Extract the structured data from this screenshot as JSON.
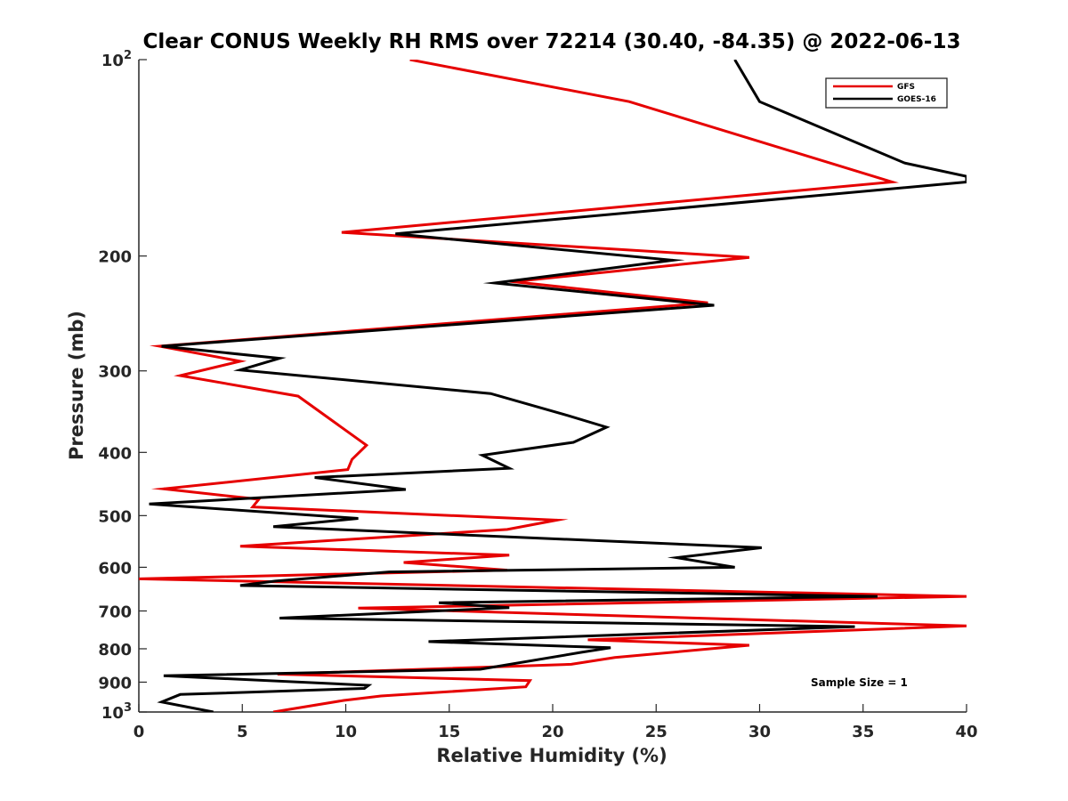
{
  "chart_data": {
    "type": "line",
    "title": "Clear CONUS Weekly RH RMS over 72214 (30.40, -84.35) @ 2022-06-13",
    "xlabel": "Relative Humidity (%)",
    "ylabel": "Pressure (mb)",
    "xlim": [
      0,
      40
    ],
    "ylim": [
      100,
      1000
    ],
    "yscale": "log",
    "y_reversed": true,
    "x_ticks": [
      0,
      5,
      10,
      15,
      20,
      25,
      30,
      35,
      40
    ],
    "x_tick_labels": [
      "0",
      "5",
      "10",
      "15",
      "20",
      "25",
      "30",
      "35",
      "40"
    ],
    "y_ticks": [
      100,
      200,
      300,
      400,
      500,
      600,
      700,
      800,
      900,
      1000
    ],
    "y_tick_labels": [
      {
        "text": "10",
        "sup": "2"
      },
      {
        "text": "200",
        "sup": ""
      },
      {
        "text": "300",
        "sup": ""
      },
      {
        "text": "400",
        "sup": ""
      },
      {
        "text": "500",
        "sup": ""
      },
      {
        "text": "600",
        "sup": ""
      },
      {
        "text": "700",
        "sup": ""
      },
      {
        "text": "800",
        "sup": ""
      },
      {
        "text": "900",
        "sup": ""
      },
      {
        "text": "10",
        "sup": "3"
      }
    ],
    "legend_position": "top-right",
    "annotation": "Sample Size = 1",
    "series": [
      {
        "name": "GFS",
        "color": "#e60000",
        "points": [
          [
            13.1,
            100
          ],
          [
            23.7,
            116
          ],
          [
            36.4,
            154
          ],
          [
            9.8,
            184
          ],
          [
            29.5,
            201
          ],
          [
            18.1,
            219
          ],
          [
            27.5,
            236
          ],
          [
            1.0,
            275
          ],
          [
            4.9,
            290
          ],
          [
            2.0,
            305
          ],
          [
            7.7,
            328
          ],
          [
            11.0,
            390
          ],
          [
            10.3,
            410
          ],
          [
            10.1,
            425
          ],
          [
            1.2,
            455
          ],
          [
            5.8,
            472
          ],
          [
            5.5,
            485
          ],
          [
            20.2,
            508
          ],
          [
            17.8,
            525
          ],
          [
            4.9,
            557
          ],
          [
            17.9,
            575
          ],
          [
            12.8,
            590
          ],
          [
            17.8,
            606
          ],
          [
            0.0,
            625
          ],
          [
            40.0,
            665
          ],
          [
            10.6,
            693
          ],
          [
            40.0,
            738
          ],
          [
            21.7,
            775
          ],
          [
            29.5,
            790
          ],
          [
            23.0,
            825
          ],
          [
            20.9,
            845
          ],
          [
            6.7,
            875
          ],
          [
            18.9,
            895
          ],
          [
            18.7,
            915
          ],
          [
            11.7,
            945
          ],
          [
            9.9,
            960
          ],
          [
            6.5,
            1000
          ]
        ]
      },
      {
        "name": "GOES-16",
        "color": "#000000",
        "points": [
          [
            28.8,
            100
          ],
          [
            30.0,
            116
          ],
          [
            37.0,
            144
          ],
          [
            40.0,
            151
          ],
          [
            40.0,
            154
          ],
          [
            12.4,
            185
          ],
          [
            25.8,
            203
          ],
          [
            17.2,
            220
          ],
          [
            27.8,
            238
          ],
          [
            1.1,
            275
          ],
          [
            6.8,
            287
          ],
          [
            4.9,
            299
          ],
          [
            17.0,
            325
          ],
          [
            20.7,
            351
          ],
          [
            22.6,
            366
          ],
          [
            21.0,
            386
          ],
          [
            16.6,
            404
          ],
          [
            17.9,
            423
          ],
          [
            8.5,
            437
          ],
          [
            12.9,
            456
          ],
          [
            0.5,
            480
          ],
          [
            10.6,
            505
          ],
          [
            6.5,
            520
          ],
          [
            30.1,
            560
          ],
          [
            26.0,
            580
          ],
          [
            28.8,
            600
          ],
          [
            12.1,
            610
          ],
          [
            6.6,
            630
          ],
          [
            4.9,
            640
          ],
          [
            35.7,
            665
          ],
          [
            14.5,
            680
          ],
          [
            17.9,
            692
          ],
          [
            6.8,
            718
          ],
          [
            34.6,
            740
          ],
          [
            14.0,
            780
          ],
          [
            22.8,
            797
          ],
          [
            21.4,
            810
          ],
          [
            16.5,
            860
          ],
          [
            1.2,
            880
          ],
          [
            11.1,
            910
          ],
          [
            10.9,
            920
          ],
          [
            2.0,
            940
          ],
          [
            1.1,
            965
          ],
          [
            3.6,
            1000
          ]
        ]
      }
    ]
  },
  "colors": {
    "gfs": "#e60000",
    "goes16": "#000000",
    "axis": "#262626"
  }
}
